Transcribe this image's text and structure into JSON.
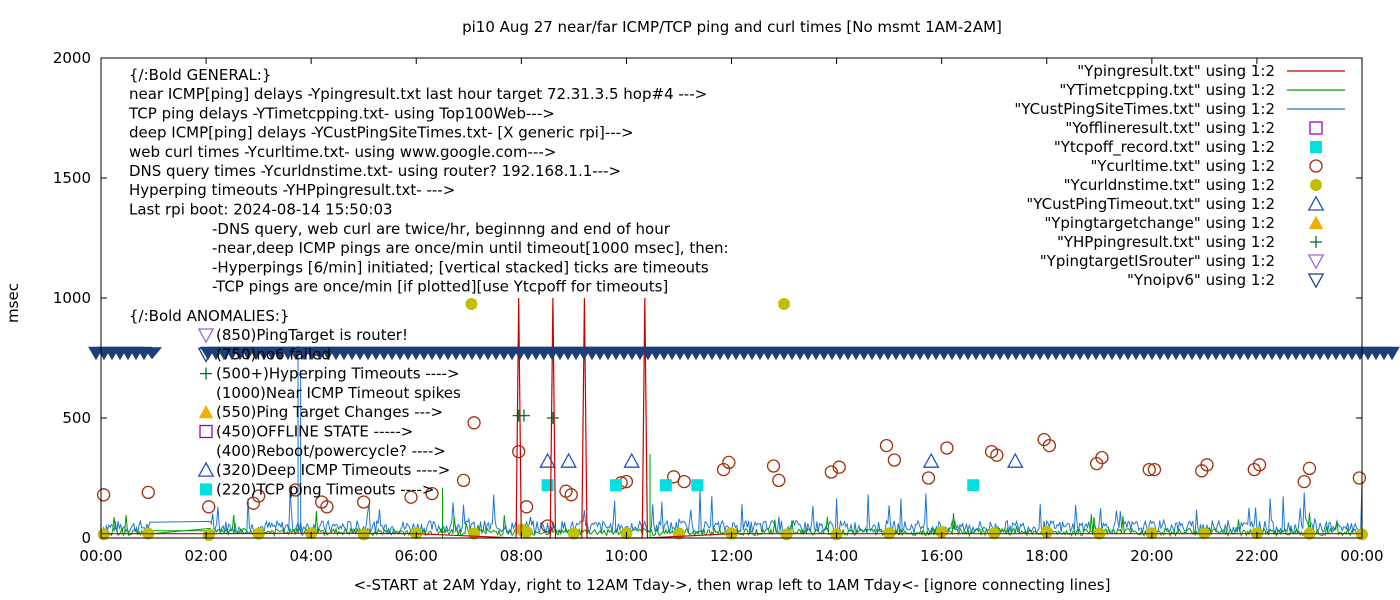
{
  "chart_data": {
    "type": "scatter",
    "title": "pi10 Aug 27  near/far ICMP/TCP ping and curl times [No msmt 1AM-2AM]",
    "xlabel": "<-START at 2AM Yday, right to 12AM Tday->, then wrap left to 1AM Tday<- [ignore connecting lines]",
    "ylabel": "msec",
    "xlim": [
      0,
      24
    ],
    "ylim": [
      0,
      2000
    ],
    "grid": false,
    "legend_position": "top-right",
    "x_ticks": [
      "00:00",
      "02:00",
      "04:00",
      "06:00",
      "08:00",
      "10:00",
      "12:00",
      "14:00",
      "16:00",
      "18:00",
      "20:00",
      "22:00",
      "00:00"
    ],
    "y_ticks": [
      "0",
      "500",
      "1000",
      "1500",
      "2000"
    ],
    "annotations": {
      "general": [
        "{/:Bold GENERAL:}",
        "near ICMP[ping] delays -Ypingresult.txt last hour target 72.31.3.5 hop#4 --->",
        "TCP ping delays -YTimetcpping.txt- using Top100Web--->",
        "deep ICMP[ping] delays -YCustPingSiteTimes.txt- [X generic rpi]--->",
        "web curl times -Ycurltime.txt- using www.google.com--->",
        "DNS query times -Ycurldnstime.txt- using router? 192.168.1.1--->",
        "Hyperping timeouts -YHPpingresult.txt- --->",
        "Last rpi boot: 2024-08-14 15:50:03"
      ],
      "notes": [
        "-DNS query, web curl are twice/hr, beginnng and end of hour",
        "-near,deep ICMP pings are once/min until timeout[1000 msec], then:",
        "  -Hyperpings [6/min] initiated; [vertical stacked] ticks are timeouts",
        "-TCP pings are once/min [if plotted][use Ytcpoff for timeouts]"
      ],
      "anomalies_title": "{/:Bold ANOMALIES:}",
      "anomalies": [
        "(850)PingTarget is router!",
        "(750)no6 failed",
        "(500+)Hyperping Timeouts ---->",
        "(1000)Near ICMP Timeout spikes",
        "(550)Ping Target Changes --->",
        "(450)OFFLINE STATE ----->",
        "(400)Reboot/powercycle? ---->",
        "(320)Deep ICMP Timeouts ---->",
        "(220)TCP ping Timeouts ---->"
      ]
    },
    "legend": [
      {
        "label": "\"Ypingresult.txt\" using 1:2",
        "kind": "line",
        "color": "#c80000"
      },
      {
        "label": "\"YTimetcpping.txt\" using 1:2",
        "kind": "line",
        "color": "#009e00"
      },
      {
        "label": "\"YCustPingSiteTimes.txt\" using 1:2",
        "kind": "line",
        "color": "#1f77d0"
      },
      {
        "label": "\"Yofflineresult.txt\" using 1:2",
        "kind": "open-square",
        "color": "#9400d3"
      },
      {
        "label": "\"Ytcpoff_record.txt\" using 1:2",
        "kind": "filled-square",
        "color": "#00e0e0"
      },
      {
        "label": "\"Ycurltime.txt\" using 1:2",
        "kind": "open-circle",
        "color": "#a0300a"
      },
      {
        "label": "\"Ycurldnstime.txt\" using 1:2",
        "kind": "filled-circle",
        "color": "#c0c000"
      },
      {
        "label": "\"YCustPingTimeout.txt\" using 1:2",
        "kind": "open-triangle",
        "color": "#2050c0"
      },
      {
        "label": "\"Ypingtargetchange\" using 1:2",
        "kind": "filled-triangle",
        "color": "#f0b000"
      },
      {
        "label": "\"YHPpingresult.txt\" using 1:2",
        "kind": "plus",
        "color": "#007030"
      },
      {
        "label": "\"YpingtargetISrouter\" using 1:2",
        "kind": "open-triangle-down",
        "color": "#a060e0"
      },
      {
        "label": "\"Ynoipv6\" using 1:2",
        "kind": "open-triangle-down",
        "color": "#1a3f7a"
      }
    ],
    "noipv6_band_value": 770,
    "series": [
      {
        "name": "Ycurltime.txt",
        "points": [
          [
            0.05,
            180
          ],
          [
            0.9,
            190
          ],
          [
            2.05,
            130
          ],
          [
            2.9,
            145
          ],
          [
            3.0,
            175
          ],
          [
            3.7,
            200
          ],
          [
            4.2,
            150
          ],
          [
            4.3,
            130
          ],
          [
            5.0,
            150
          ],
          [
            5.9,
            170
          ],
          [
            6.3,
            185
          ],
          [
            6.9,
            240
          ],
          [
            7.1,
            480
          ],
          [
            7.95,
            360
          ],
          [
            8.1,
            130
          ],
          [
            8.5,
            50
          ],
          [
            8.85,
            195
          ],
          [
            8.95,
            180
          ],
          [
            9.9,
            230
          ],
          [
            10.0,
            235
          ],
          [
            10.9,
            255
          ],
          [
            11.1,
            235
          ],
          [
            11.85,
            285
          ],
          [
            11.95,
            315
          ],
          [
            12.8,
            300
          ],
          [
            12.9,
            240
          ],
          [
            13.9,
            275
          ],
          [
            14.05,
            295
          ],
          [
            14.95,
            385
          ],
          [
            15.1,
            325
          ],
          [
            15.75,
            250
          ],
          [
            16.1,
            375
          ],
          [
            16.95,
            360
          ],
          [
            17.05,
            345
          ],
          [
            17.95,
            410
          ],
          [
            18.05,
            385
          ],
          [
            18.95,
            310
          ],
          [
            19.05,
            335
          ],
          [
            19.95,
            285
          ],
          [
            20.05,
            285
          ],
          [
            20.95,
            280
          ],
          [
            21.05,
            305
          ],
          [
            21.95,
            285
          ],
          [
            22.05,
            305
          ],
          [
            22.9,
            235
          ],
          [
            23.0,
            290
          ],
          [
            23.95,
            250
          ]
        ]
      },
      {
        "name": "Ycurldnstime.txt",
        "points": [
          [
            0.05,
            15
          ],
          [
            0.9,
            18
          ],
          [
            2.05,
            12
          ],
          [
            3.0,
            18
          ],
          [
            4.0,
            20
          ],
          [
            5.0,
            15
          ],
          [
            6.0,
            20
          ],
          [
            7.05,
            975
          ],
          [
            7.1,
            18
          ],
          [
            8.0,
            35
          ],
          [
            8.1,
            25
          ],
          [
            9.0,
            18
          ],
          [
            10.0,
            20
          ],
          [
            11.0,
            18
          ],
          [
            12.0,
            18
          ],
          [
            13.0,
            975
          ],
          [
            13.05,
            15
          ],
          [
            14.0,
            15
          ],
          [
            15.0,
            20
          ],
          [
            16.0,
            25
          ],
          [
            17.0,
            20
          ],
          [
            18.0,
            25
          ],
          [
            19.0,
            18
          ],
          [
            20.0,
            20
          ],
          [
            21.0,
            20
          ],
          [
            22.0,
            20
          ],
          [
            23.0,
            18
          ],
          [
            24.0,
            15
          ]
        ]
      },
      {
        "name": "YCustPingTimeout.txt",
        "points": [
          [
            8.5,
            320
          ],
          [
            8.9,
            320
          ],
          [
            10.1,
            320
          ],
          [
            15.8,
            320
          ],
          [
            17.4,
            320
          ]
        ]
      },
      {
        "name": "Ytcpoff_record.txt",
        "points": [
          [
            8.5,
            220
          ],
          [
            9.8,
            220
          ],
          [
            10.75,
            220
          ],
          [
            11.35,
            220
          ],
          [
            16.6,
            220
          ]
        ]
      },
      {
        "name": "YHPpingresult.txt",
        "points": [
          [
            7.95,
            510
          ],
          [
            8.05,
            510
          ],
          [
            8.6,
            500
          ]
        ]
      },
      {
        "name": "Ypingresult.txt",
        "points": [
          [
            0,
            18
          ],
          [
            0.95,
            18
          ],
          [
            2.05,
            18
          ],
          [
            4,
            20
          ],
          [
            6,
            18
          ],
          [
            7.9,
            0
          ],
          [
            7.95,
            1000
          ],
          [
            8.0,
            0
          ],
          [
            8.55,
            0
          ],
          [
            8.6,
            1000
          ],
          [
            8.65,
            0
          ],
          [
            9.15,
            0
          ],
          [
            9.2,
            1000
          ],
          [
            9.25,
            0
          ],
          [
            10.3,
            0
          ],
          [
            10.35,
            1000
          ],
          [
            10.4,
            0
          ],
          [
            12,
            18
          ],
          [
            16,
            18
          ],
          [
            20,
            18
          ],
          [
            24,
            18
          ]
        ]
      }
    ]
  }
}
